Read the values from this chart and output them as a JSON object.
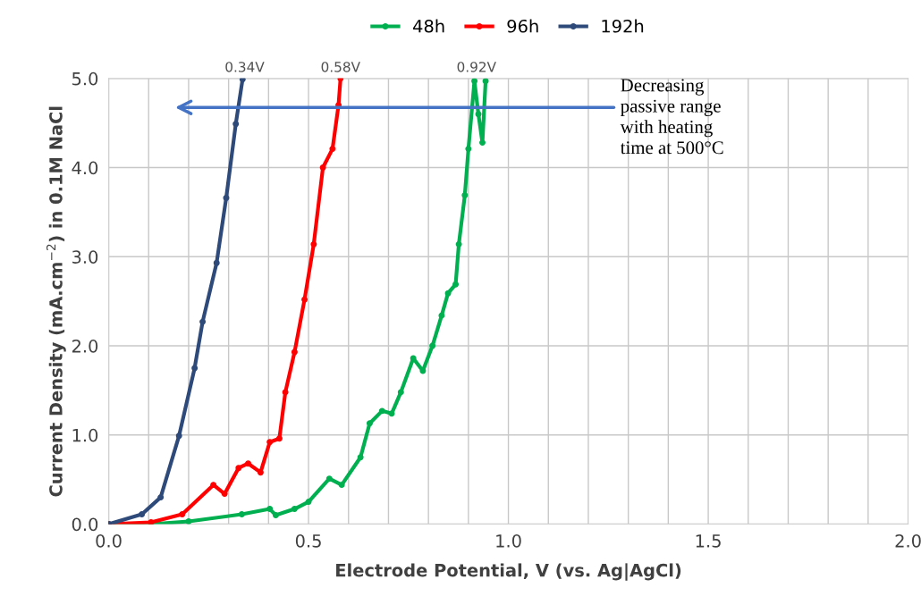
{
  "chart_data": {
    "type": "line",
    "xlabel": "Electrode Potential, V (vs. Ag|AgCl)",
    "ylabel": "Current Density (mA.cm$^{−2}$) in 0.1M NaCl",
    "xlim": [
      0,
      2.0
    ],
    "ylim": [
      0,
      5.0
    ],
    "xticks": [
      {
        "value": 0,
        "label": "0.0"
      },
      {
        "value": 0.1,
        "label": null
      },
      {
        "value": 0.2,
        "label": null
      },
      {
        "value": 0.3,
        "label": null
      },
      {
        "value": 0.4,
        "label": null
      },
      {
        "value": 0.5,
        "label": "0.5"
      },
      {
        "value": 0.6,
        "label": null
      },
      {
        "value": 0.7,
        "label": null
      },
      {
        "value": 0.8,
        "label": null
      },
      {
        "value": 0.9,
        "label": null
      },
      {
        "value": 1.0,
        "label": "1.0"
      },
      {
        "value": 1.1,
        "label": null
      },
      {
        "value": 1.2,
        "label": null
      },
      {
        "value": 1.3,
        "label": null
      },
      {
        "value": 1.4,
        "label": null
      },
      {
        "value": 1.5,
        "label": "1.5"
      },
      {
        "value": 1.6,
        "label": null
      },
      {
        "value": 1.7,
        "label": null
      },
      {
        "value": 1.8,
        "label": null
      },
      {
        "value": 1.9,
        "label": null
      },
      {
        "value": 2.0,
        "label": "2.0"
      }
    ],
    "yticks": [
      {
        "value": 0,
        "label": "0.0"
      },
      {
        "value": 1,
        "label": "1.0"
      },
      {
        "value": 2,
        "label": "2.0"
      },
      {
        "value": 3,
        "label": "3.0"
      },
      {
        "value": 4,
        "label": "4.0"
      },
      {
        "value": 5,
        "label": "5.0"
      }
    ],
    "grid": true,
    "legend": "top",
    "marker": "circle",
    "series": [
      {
        "name": "48h",
        "color": "#00b050",
        "x": [
          0,
          0.106,
          0.2,
          0.333,
          0.403,
          0.418,
          0.465,
          0.5,
          0.552,
          0.583,
          0.63,
          0.653,
          0.684,
          0.708,
          0.731,
          0.762,
          0.786,
          0.81,
          0.833,
          0.849,
          0.868,
          0.876,
          0.891,
          0.9,
          0.915,
          0.925,
          0.935,
          0.943
        ],
        "values": [
          0,
          0,
          0.03,
          0.11,
          0.17,
          0.1,
          0.17,
          0.25,
          0.51,
          0.44,
          0.75,
          1.13,
          1.27,
          1.24,
          1.48,
          1.86,
          1.72,
          2.0,
          2.34,
          2.59,
          2.69,
          3.14,
          3.69,
          4.21,
          4.97,
          4.6,
          4.28,
          4.97
        ]
      },
      {
        "name": "96h",
        "color": "#ff0000",
        "x": [
          0,
          0.106,
          0.184,
          0.262,
          0.29,
          0.325,
          0.349,
          0.38,
          0.403,
          0.427,
          0.442,
          0.465,
          0.49,
          0.513,
          0.536,
          0.56,
          0.575,
          0.58
        ],
        "values": [
          0,
          0.02,
          0.11,
          0.44,
          0.34,
          0.63,
          0.68,
          0.58,
          0.92,
          0.96,
          1.48,
          1.93,
          2.52,
          3.14,
          4.0,
          4.21,
          4.7,
          5.0
        ]
      },
      {
        "name": "192h",
        "color": "#2e4a7a",
        "x": [
          0,
          0.083,
          0.13,
          0.176,
          0.215,
          0.235,
          0.27,
          0.294,
          0.318,
          0.335
        ],
        "values": [
          0,
          0.11,
          0.3,
          0.99,
          1.75,
          2.27,
          2.93,
          3.66,
          4.49,
          4.99
        ]
      }
    ],
    "annotations": [
      {
        "text": "0.34V",
        "x": 0.34,
        "y": 5.0
      },
      {
        "text": "0.58V",
        "x": 0.58,
        "y": 5.0
      },
      {
        "text": "0.92V",
        "x": 0.92,
        "y": 5.0
      },
      "Decreasing\npassive range\nwith heating\ntime at 500°C"
    ]
  }
}
